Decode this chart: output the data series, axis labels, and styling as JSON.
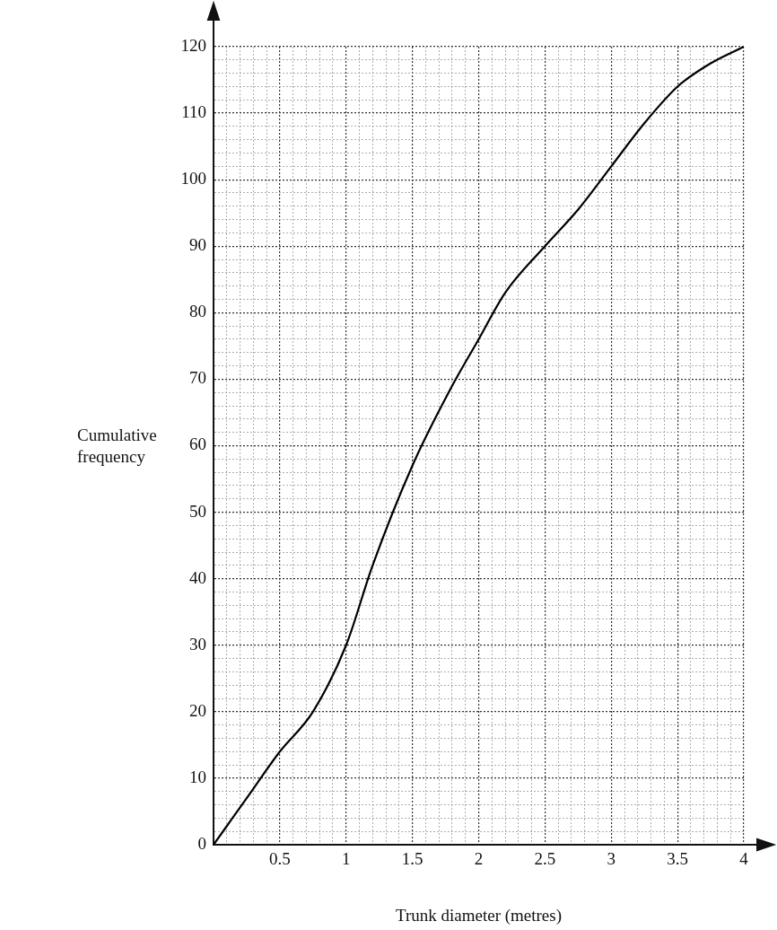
{
  "chart_data": {
    "type": "line",
    "xlabel": "Trunk diameter (metres)",
    "ylabel": "Cumulative frequency",
    "x": [
      0,
      0.25,
      0.5,
      0.75,
      1,
      1.2,
      1.5,
      1.8,
      2,
      2.2,
      2.5,
      2.75,
      3,
      3.25,
      3.5,
      3.75,
      4
    ],
    "series": [
      {
        "color": "#000000",
        "values": [
          0,
          7,
          14,
          20,
          30,
          42,
          57,
          69,
          76,
          83,
          90,
          95.5,
          102,
          108.5,
          114,
          117.5,
          120
        ]
      }
    ],
    "xlim": [
      0,
      4
    ],
    "ylim": [
      0,
      120
    ],
    "xticks": [
      {
        "value": 0,
        "label": null
      },
      {
        "value": 0.1,
        "label": null
      },
      {
        "value": 0.2,
        "label": null
      },
      {
        "value": 0.3,
        "label": null
      },
      {
        "value": 0.4,
        "label": null
      },
      0.5,
      {
        "value": 0.6,
        "label": null
      },
      {
        "value": 0.7,
        "label": null
      },
      {
        "value": 0.8,
        "label": null
      },
      {
        "value": 0.9,
        "label": null
      },
      1,
      {
        "value": 1.1,
        "label": null
      },
      {
        "value": 1.2,
        "label": null
      },
      {
        "value": 1.3,
        "label": null
      },
      {
        "value": 1.4,
        "label": null
      },
      1.5,
      {
        "value": 1.6,
        "label": null
      },
      {
        "value": 1.7,
        "label": null
      },
      {
        "value": 1.8,
        "label": null
      },
      {
        "value": 1.9,
        "label": null
      },
      2,
      {
        "value": 2.1,
        "label": null
      },
      {
        "value": 2.2,
        "label": null
      },
      {
        "value": 2.3,
        "label": null
      },
      {
        "value": 2.4,
        "label": null
      },
      2.5,
      {
        "value": 2.6,
        "label": null
      },
      {
        "value": 2.7,
        "label": null
      },
      {
        "value": 2.8,
        "label": null
      },
      {
        "value": 2.9,
        "label": null
      },
      3,
      {
        "value": 3.1,
        "label": null
      },
      {
        "value": 3.2,
        "label": null
      },
      {
        "value": 3.3,
        "label": null
      },
      {
        "value": 3.4,
        "label": null
      },
      3.5,
      {
        "value": 3.6,
        "label": null
      },
      {
        "value": 3.7,
        "label": null
      },
      {
        "value": 3.8,
        "label": null
      },
      {
        "value": 3.9,
        "label": null
      },
      4
    ],
    "yticks": [
      0,
      {
        "value": 2,
        "label": null
      },
      {
        "value": 4,
        "label": null
      },
      {
        "value": 6,
        "label": null
      },
      {
        "value": 8,
        "label": null
      },
      10,
      {
        "value": 12,
        "label": null
      },
      {
        "value": 14,
        "label": null
      },
      {
        "value": 16,
        "label": null
      },
      {
        "value": 18,
        "label": null
      },
      20,
      {
        "value": 22,
        "label": null
      },
      {
        "value": 24,
        "label": null
      },
      {
        "value": 26,
        "label": null
      },
      {
        "value": 28,
        "label": null
      },
      30,
      {
        "value": 32,
        "label": null
      },
      {
        "value": 34,
        "label": null
      },
      {
        "value": 36,
        "label": null
      },
      {
        "value": 38,
        "label": null
      },
      40,
      {
        "value": 42,
        "label": null
      },
      {
        "value": 44,
        "label": null
      },
      {
        "value": 46,
        "label": null
      },
      {
        "value": 48,
        "label": null
      },
      50,
      {
        "value": 52,
        "label": null
      },
      {
        "value": 54,
        "label": null
      },
      {
        "value": 56,
        "label": null
      },
      {
        "value": 58,
        "label": null
      },
      60,
      {
        "value": 62,
        "label": null
      },
      {
        "value": 64,
        "label": null
      },
      {
        "value": 66,
        "label": null
      },
      {
        "value": 68,
        "label": null
      },
      70,
      {
        "value": 72,
        "label": null
      },
      {
        "value": 74,
        "label": null
      },
      {
        "value": 76,
        "label": null
      },
      {
        "value": 78,
        "label": null
      },
      80,
      {
        "value": 82,
        "label": null
      },
      {
        "value": 84,
        "label": null
      },
      {
        "value": 86,
        "label": null
      },
      {
        "value": 88,
        "label": null
      },
      90,
      {
        "value": 92,
        "label": null
      },
      {
        "value": 94,
        "label": null
      },
      {
        "value": 96,
        "label": null
      },
      {
        "value": 98,
        "label": null
      },
      100,
      {
        "value": 102,
        "label": null
      },
      {
        "value": 104,
        "label": null
      },
      {
        "value": 106,
        "label": null
      },
      {
        "value": 108,
        "label": null
      },
      110,
      {
        "value": 112,
        "label": null
      },
      {
        "value": 114,
        "label": null
      },
      {
        "value": 116,
        "label": null
      },
      {
        "value": 118,
        "label": null
      },
      120
    ],
    "grid": true,
    "marker": "none"
  }
}
